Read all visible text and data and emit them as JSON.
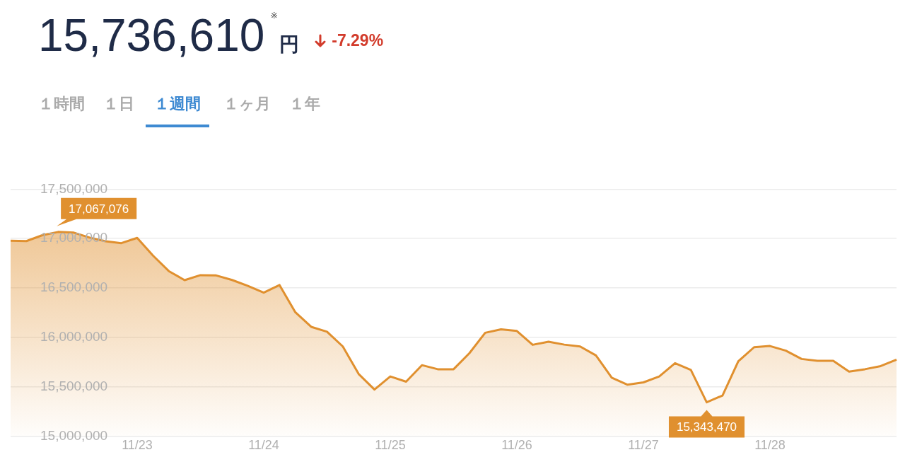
{
  "chart_data": {
    "type": "area",
    "title": "15,736,610",
    "subtitle": "-7.29%",
    "annotations": [
      "※",
      "円",
      "１時間",
      "１日",
      "１週間",
      "１ヶ月",
      "１年"
    ],
    "categories": [
      null,
      null,
      null,
      null,
      null,
      null,
      null,
      null,
      "11/23",
      null,
      null,
      null,
      null,
      null,
      null,
      null,
      "11/24",
      null,
      null,
      null,
      null,
      null,
      null,
      null,
      "11/25",
      null,
      null,
      null,
      null,
      null,
      null,
      null,
      "11/26",
      null,
      null,
      null,
      null,
      null,
      null,
      null,
      "11/27",
      null,
      null,
      null,
      null,
      null,
      null,
      null,
      "11/28",
      null,
      null,
      null,
      null,
      null,
      null,
      null,
      null
    ],
    "series": [
      {
        "color": "#e0902f",
        "values": [
          16978000,
          16975000,
          17034000,
          17067076,
          17060000,
          17010000,
          16973000,
          16954000,
          17007000,
          16828000,
          16671000,
          16579000,
          16630000,
          16627000,
          16581000,
          16521000,
          16453000,
          16530000,
          16254000,
          16107000,
          16058000,
          15908000,
          15630000,
          15472000,
          15605000,
          15552000,
          15719000,
          15678000,
          15678000,
          15840000,
          16047000,
          16082000,
          16065000,
          15925000,
          15956000,
          15927000,
          15908000,
          15818000,
          15593000,
          15521000,
          15545000,
          15605000,
          15739000,
          15671000,
          15343470,
          15412000,
          15758000,
          15901000,
          15913000,
          15866000,
          15782000,
          15763000,
          15763000,
          15654000,
          15678000,
          15710000,
          15775000
        ],
        "value_labels": [
          null,
          null,
          null,
          "17,067,076",
          null,
          null,
          null,
          null,
          null,
          null,
          null,
          null,
          null,
          null,
          null,
          null,
          null,
          null,
          null,
          null,
          null,
          null,
          null,
          null,
          null,
          null,
          null,
          null,
          null,
          null,
          null,
          null,
          null,
          null,
          null,
          null,
          null,
          null,
          null,
          null,
          null,
          null,
          null,
          null,
          "15,343,470",
          null,
          null,
          null,
          null,
          null,
          null,
          null,
          null,
          null,
          null,
          null,
          null
        ]
      }
    ],
    "ylim": [
      15000000,
      17500000
    ],
    "yticks": [
      {
        "value": 15000000,
        "label": "15,000,000"
      },
      {
        "value": 15500000,
        "label": "15,500,000"
      },
      {
        "value": 16000000,
        "label": "16,000,000"
      },
      {
        "value": 16500000,
        "label": "16,500,000"
      },
      {
        "value": 17000000,
        "label": "17,000,000"
      },
      {
        "value": 17500000,
        "label": "17,500,000"
      }
    ],
    "grid": "y",
    "marker": "none",
    "line_style": "solid"
  }
}
